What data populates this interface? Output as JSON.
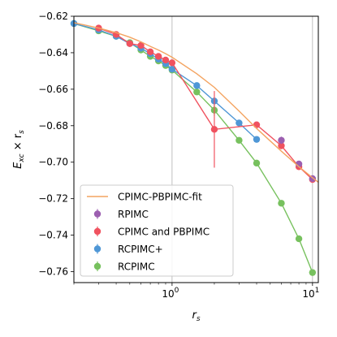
{
  "chart_data": {
    "type": "scatter",
    "xscale": "log",
    "xlim": [
      0.2,
      11
    ],
    "ylim": [
      -0.766,
      -0.62
    ],
    "grid": "major-at-1-and-10",
    "legend_position": "lower-left",
    "xlabel_main": "r",
    "xlabel_sub": "s",
    "ylabel": "E_xc × r_s",
    "x_ticks": [
      {
        "value": 1,
        "base": "10",
        "exp": "0"
      },
      {
        "value": 10,
        "base": "10",
        "exp": "1"
      }
    ],
    "y_ticks": [
      {
        "value": -0.62,
        "label": "−0.62"
      },
      {
        "value": -0.64,
        "label": "−0.64"
      },
      {
        "value": -0.66,
        "label": "−0.66"
      },
      {
        "value": -0.68,
        "label": "−0.68"
      },
      {
        "value": -0.7,
        "label": "−0.70"
      },
      {
        "value": -0.72,
        "label": "−0.72"
      },
      {
        "value": -0.74,
        "label": "−0.74"
      },
      {
        "value": -0.76,
        "label": "−0.76"
      }
    ],
    "series": [
      {
        "name": "CPIMC-PBPIMC-fit",
        "kind": "line",
        "color": "#f4a461",
        "x": [
          0.2,
          0.3,
          0.4,
          0.5,
          0.6,
          0.7,
          0.8,
          0.9,
          1.0,
          1.5,
          2.0,
          3.0,
          4.0,
          6.0,
          8.0,
          10.0,
          11.0
        ],
        "y": [
          -0.6235,
          -0.6265,
          -0.629,
          -0.6315,
          -0.634,
          -0.6365,
          -0.6385,
          -0.6405,
          -0.6425,
          -0.6515,
          -0.659,
          -0.672,
          -0.6815,
          -0.694,
          -0.7025,
          -0.7085,
          -0.711
        ]
      },
      {
        "name": "RPIMC",
        "kind": "points",
        "color": "#9c5fb0",
        "x": [
          6.0,
          8.0,
          10.0
        ],
        "y": [
          -0.688,
          -0.701,
          -0.709
        ],
        "err": [
          0.002,
          0.001,
          0.001
        ]
      },
      {
        "name": "CPIMC and PBPIMC",
        "kind": "points+line",
        "color": "#f0525f",
        "x": [
          0.3,
          0.4,
          0.5,
          0.6,
          0.7,
          0.8,
          0.9,
          1.0,
          2.0,
          4.0,
          6.0,
          8.0,
          10.0
        ],
        "y": [
          -0.6265,
          -0.63,
          -0.635,
          -0.636,
          -0.6395,
          -0.642,
          -0.644,
          -0.6455,
          -0.682,
          -0.6795,
          -0.691,
          -0.7025,
          -0.7095
        ],
        "err": [
          0.0005,
          0.0005,
          0.0005,
          0.0005,
          0.0005,
          0.0005,
          0.0005,
          0.0008,
          0.021,
          0.0008,
          0.0015,
          0.001,
          0.001
        ]
      },
      {
        "name": "RCPIMC+",
        "kind": "points+line",
        "color": "#4f97d6",
        "x": [
          0.2,
          0.3,
          0.4,
          0.5,
          0.6,
          0.7,
          0.8,
          0.9,
          1.0,
          1.5,
          2.0,
          3.0,
          4.0
        ],
        "y": [
          -0.624,
          -0.6275,
          -0.631,
          -0.635,
          -0.6375,
          -0.6405,
          -0.6435,
          -0.646,
          -0.649,
          -0.658,
          -0.6665,
          -0.6785,
          -0.6875
        ],
        "err": [
          0.0003,
          0.0003,
          0.0003,
          0.0003,
          0.0003,
          0.0003,
          0.0003,
          0.0003,
          0.0003,
          0.0005,
          0.0015,
          0.0006,
          0.0006
        ]
      },
      {
        "name": "RCPIMC",
        "kind": "points+line",
        "color": "#77c15e",
        "x": [
          0.2,
          0.3,
          0.4,
          0.5,
          0.6,
          0.7,
          0.8,
          0.9,
          1.0,
          1.5,
          2.0,
          3.0,
          4.0,
          6.0,
          8.0,
          10.0
        ],
        "y": [
          -0.624,
          -0.628,
          -0.631,
          -0.6345,
          -0.6385,
          -0.642,
          -0.6445,
          -0.647,
          -0.6495,
          -0.6615,
          -0.6715,
          -0.688,
          -0.7005,
          -0.7225,
          -0.742,
          -0.7605
        ],
        "err": [
          0.0003,
          0.0003,
          0.0003,
          0.0003,
          0.0003,
          0.0003,
          0.0003,
          0.0003,
          0.0003,
          0.0005,
          0.003,
          0.0005,
          0.0005,
          0.0008,
          0.001,
          0.0015
        ]
      }
    ],
    "legend": [
      {
        "label": "CPIMC-PBPIMC-fit",
        "color": "#f4a461",
        "kind": "line"
      },
      {
        "label": "RPIMC",
        "color": "#9c5fb0",
        "kind": "point"
      },
      {
        "label": "CPIMC and PBPIMC",
        "color": "#f0525f",
        "kind": "point"
      },
      {
        "label": "RCPIMC+",
        "color": "#4f97d6",
        "kind": "point"
      },
      {
        "label": "RCPIMC",
        "color": "#77c15e",
        "kind": "point"
      }
    ]
  }
}
